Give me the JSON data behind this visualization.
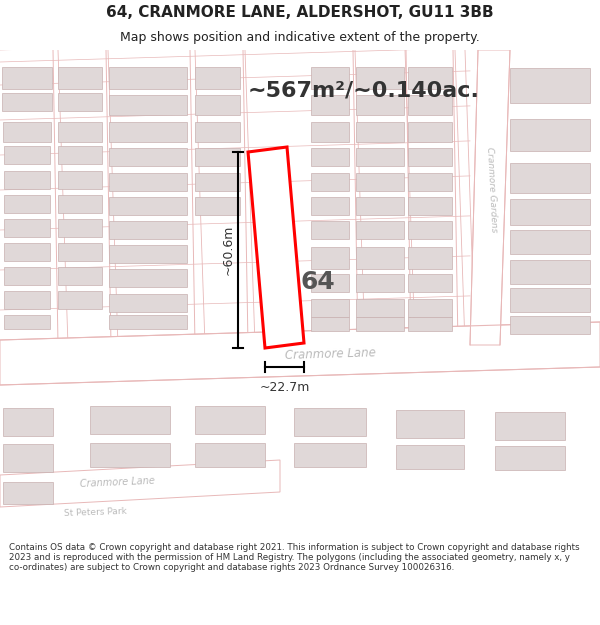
{
  "title": "64, CRANMORE LANE, ALDERSHOT, GU11 3BB",
  "subtitle": "Map shows position and indicative extent of the property.",
  "area_text": "~567m²/~0.140ac.",
  "dim_width": "~22.7m",
  "dim_height": "~60.6m",
  "plot_number": "64",
  "footer": "Contains OS data © Crown copyright and database right 2021. This information is subject to Crown copyright and database rights 2023 and is reproduced with the permission of HM Land Registry. The polygons (including the associated geometry, namely x, y co-ordinates) are subject to Crown copyright and database rights 2023 Ordnance Survey 100026316.",
  "map_bg": "#f5eeee",
  "road_fill": "#ffffff",
  "road_edge": "#e8b8b8",
  "building_fill": "#e0d8d8",
  "building_edge": "#c8b0b0",
  "highlight_color": "#ff0000",
  "text_dark": "#333333",
  "text_road": "#aaaaaa",
  "title_color": "#222222",
  "title_fontsize": 11,
  "subtitle_fontsize": 9,
  "area_fontsize": 16,
  "dim_fontsize": 9,
  "plot_num_fontsize": 18
}
